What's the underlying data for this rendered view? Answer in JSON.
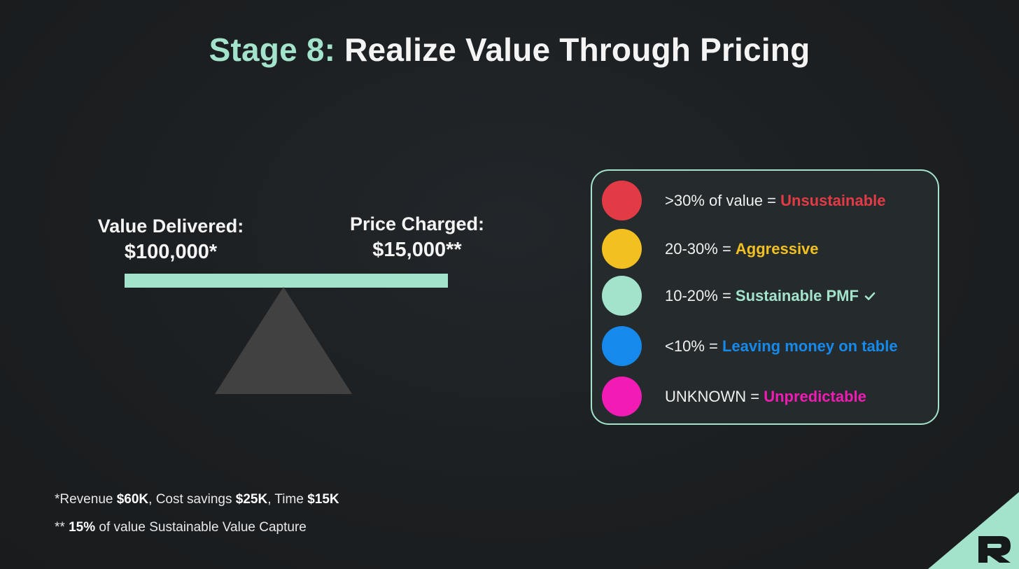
{
  "title": {
    "accent": "Stage 8:",
    "main": "Realize Value Through Pricing"
  },
  "seesaw": {
    "left_label": "Value Delivered:",
    "left_amount": "$100,000*",
    "right_label": "Price Charged:",
    "right_amount": "$15,000**"
  },
  "legend": {
    "rows": [
      {
        "range": ">30% of value = ",
        "verdict": "Unsustainable",
        "color": "#e33b45",
        "icon": ""
      },
      {
        "range": "20-30% = ",
        "verdict": "Aggressive",
        "color": "#f2c021",
        "icon": ""
      },
      {
        "range": "10-20% = ",
        "verdict": "Sustainable PMF",
        "color": "#a3e3cb",
        "icon": "check-icon"
      },
      {
        "range": "<10% = ",
        "verdict": "Leaving money on table",
        "color": "#1689ec",
        "icon": ""
      },
      {
        "range": "UNKNOWN = ",
        "verdict": "Unpredictable",
        "color": "#f01cb3",
        "icon": ""
      }
    ]
  },
  "footnotes": {
    "line1": {
      "prefix": "*Revenue ",
      "revenue": "$60K",
      "mid1": ", Cost savings ",
      "savings": "$25K",
      "mid2": ", Time ",
      "time": "$15K"
    },
    "line2": {
      "prefix": "** ",
      "pct": "15%",
      "rest": " of value Sustainable Value Capture"
    }
  },
  "colors": {
    "accent": "#a3e3cb",
    "background": "#1c1f21",
    "fulcrum": "#414141"
  },
  "logo": {
    "letter": "R"
  }
}
